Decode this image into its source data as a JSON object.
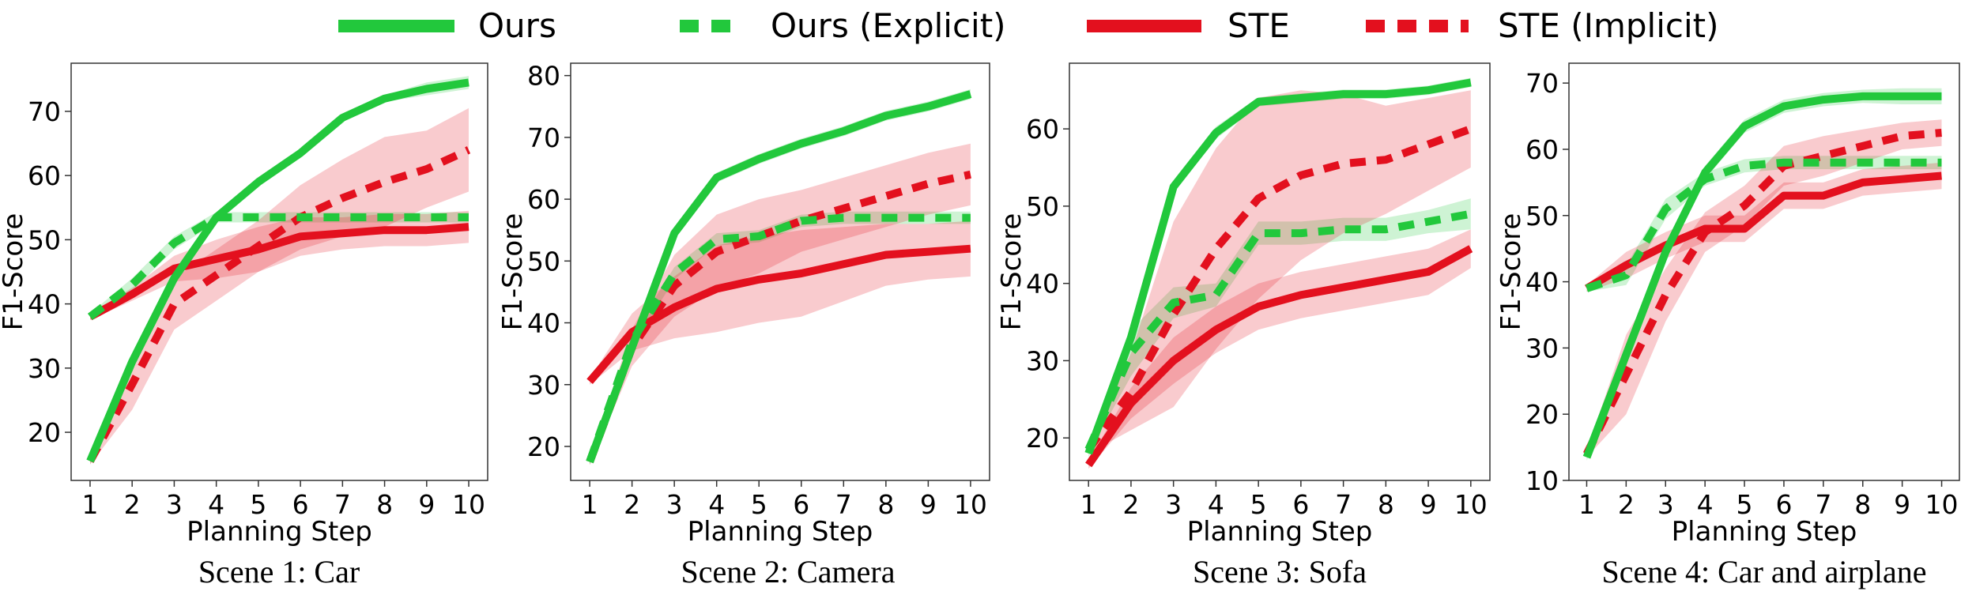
{
  "legend": {
    "entries": [
      {
        "label": "Ours",
        "color": "#22c83c",
        "dash": "solid"
      },
      {
        "label": "Ours (Explicit)",
        "color": "#22c83c",
        "dash": "dashed"
      },
      {
        "label": "STE",
        "color": "#e3101e",
        "dash": "solid"
      },
      {
        "label": "STE (Implicit)",
        "color": "#e3101e",
        "dash": "dashed"
      }
    ]
  },
  "chart_data": [
    {
      "type": "line",
      "title": "Scene 1: Car",
      "xlabel": "Planning Step",
      "ylabel": "F1-Score",
      "x": [
        1,
        2,
        3,
        4,
        5,
        6,
        7,
        8,
        9,
        10
      ],
      "xlim": [
        0.55,
        10.45
      ],
      "ylim": [
        12.5,
        77.5
      ],
      "yticks": [
        20,
        30,
        40,
        50,
        60,
        70
      ],
      "series": [
        {
          "name": "Ours",
          "values": [
            15.5,
            31,
            44,
            53.5,
            59,
            63.5,
            69,
            72,
            73.5,
            74.5
          ],
          "band": [
            0.5,
            0.5,
            0.5,
            0.5,
            0.5,
            0.5,
            0.5,
            0.5,
            1,
            1
          ]
        },
        {
          "name": "Ours (Explicit)",
          "values": [
            38,
            43,
            49.5,
            53.5,
            53.5,
            53.5,
            53.5,
            53.5,
            53.5,
            53.5
          ],
          "band": [
            0.5,
            1,
            1,
            0.8,
            0.8,
            0.8,
            0.8,
            0.8,
            0.8,
            0.8
          ]
        },
        {
          "name": "STE",
          "values": [
            38,
            41.5,
            45.5,
            47,
            48.5,
            50.5,
            51,
            51.5,
            51.5,
            52
          ],
          "band": [
            0.5,
            1,
            2,
            3,
            3.5,
            3,
            2.5,
            2.5,
            2.5,
            2.5
          ]
        },
        {
          "name": "STE (Implicit)",
          "values": [
            15.5,
            27.5,
            40,
            44.5,
            49,
            53.5,
            56.5,
            59,
            61,
            64
          ],
          "band": [
            0.5,
            4,
            4,
            4,
            4,
            5,
            6,
            7,
            6,
            6.5
          ]
        }
      ]
    },
    {
      "type": "line",
      "title": "Scene 2: Camera",
      "xlabel": "Planning Step",
      "ylabel": "F1-Score",
      "x": [
        1,
        2,
        3,
        4,
        5,
        6,
        7,
        8,
        9,
        10
      ],
      "xlim": [
        0.55,
        10.45
      ],
      "ylim": [
        14.5,
        82
      ],
      "yticks": [
        20,
        30,
        40,
        50,
        60,
        70,
        80
      ],
      "series": [
        {
          "name": "Ours",
          "values": [
            17.5,
            36,
            54.5,
            63.5,
            66.5,
            69,
            71,
            73.5,
            75,
            77
          ],
          "band": [
            0.5,
            0.5,
            0.8,
            0.8,
            0.8,
            0.8,
            0.8,
            0.8,
            0.8,
            0.8
          ]
        },
        {
          "name": "Ours (Explicit)",
          "values": [
            17.5,
            37,
            48,
            53.5,
            54,
            56.5,
            57,
            57,
            57,
            57
          ],
          "band": [
            0.5,
            1,
            1,
            1,
            1,
            1,
            1,
            1,
            1,
            1
          ]
        },
        {
          "name": "STE",
          "values": [
            30.5,
            38.5,
            42.5,
            45.5,
            47,
            48,
            49.5,
            51,
            51.5,
            52
          ],
          "band": [
            0.5,
            3,
            5,
            7,
            7,
            7,
            6,
            5,
            4.5,
            4.5
          ]
        },
        {
          "name": "STE (Implicit)",
          "values": [
            17.5,
            36,
            46,
            51.5,
            54,
            56.5,
            58.5,
            60.5,
            62.5,
            64
          ],
          "band": [
            0.5,
            3,
            5,
            6,
            6,
            5,
            5,
            5,
            5,
            5
          ]
        }
      ]
    },
    {
      "type": "line",
      "title": "Scene 3: Sofa",
      "xlabel": "Planning Step",
      "ylabel": "F1-Score",
      "x": [
        1,
        2,
        3,
        4,
        5,
        6,
        7,
        8,
        9,
        10
      ],
      "xlim": [
        0.55,
        10.45
      ],
      "ylim": [
        14.5,
        68.5
      ],
      "yticks": [
        20,
        30,
        40,
        50,
        60
      ],
      "series": [
        {
          "name": "Ours",
          "values": [
            18,
            33,
            52.5,
            59.5,
            63.5,
            64,
            64.5,
            64.5,
            65,
            66
          ],
          "band": [
            0.5,
            0.8,
            0.8,
            0.8,
            0.6,
            0.6,
            0.6,
            0.6,
            0.6,
            0.6
          ]
        },
        {
          "name": "Ours (Explicit)",
          "values": [
            18.5,
            31,
            37.5,
            38.5,
            46.5,
            46.5,
            47,
            47,
            48,
            49
          ],
          "band": [
            0.5,
            3,
            2,
            1.5,
            1.5,
            1.5,
            1.5,
            1.5,
            1.5,
            2
          ]
        },
        {
          "name": "STE",
          "values": [
            16.5,
            24.5,
            30,
            34,
            37,
            38.5,
            39.5,
            40.5,
            41.5,
            44.5
          ],
          "band": [
            0.5,
            2,
            3,
            3,
            3,
            3,
            3,
            3,
            3,
            2.5
          ]
        },
        {
          "name": "STE (Implicit)",
          "values": [
            18.5,
            26,
            36,
            44.5,
            51,
            54,
            55.5,
            56,
            58,
            60
          ],
          "band": [
            0.5,
            5,
            12,
            13,
            13,
            11,
            9,
            7,
            6,
            5
          ]
        }
      ]
    },
    {
      "type": "line",
      "title": "Scene 4: Car and airplane",
      "xlabel": "Planning Step",
      "ylabel": "F1-Score",
      "x": [
        1,
        2,
        3,
        4,
        5,
        6,
        7,
        8,
        9,
        10
      ],
      "xlim": [
        0.55,
        10.45
      ],
      "ylim": [
        10,
        73
      ],
      "yticks": [
        10,
        20,
        30,
        40,
        50,
        60,
        70
      ],
      "series": [
        {
          "name": "Ours",
          "values": [
            13.5,
            29,
            44.5,
            56.5,
            63.5,
            66.5,
            67.5,
            68,
            68,
            68
          ],
          "band": [
            0.5,
            1,
            1,
            1,
            1,
            1,
            1,
            1,
            1.2,
            1.2
          ]
        },
        {
          "name": "Ours (Explicit)",
          "values": [
            39,
            41,
            51,
            55.5,
            57.5,
            58,
            58,
            58,
            58,
            58
          ],
          "band": [
            0.5,
            1.5,
            1.5,
            1,
            1,
            1,
            1,
            1,
            1,
            1
          ]
        },
        {
          "name": "STE",
          "values": [
            39,
            42.5,
            45.5,
            48,
            48,
            53,
            53,
            55,
            55.5,
            56
          ],
          "band": [
            0.5,
            2,
            2,
            2,
            2,
            2,
            2,
            2,
            2,
            2
          ]
        },
        {
          "name": "STE (Implicit)",
          "values": [
            14,
            26,
            38,
            47.5,
            51.5,
            57.5,
            59,
            60.5,
            62,
            62.5
          ],
          "band": [
            0.5,
            6,
            4,
            3,
            3,
            3,
            3,
            2.5,
            2,
            2
          ]
        }
      ]
    }
  ]
}
